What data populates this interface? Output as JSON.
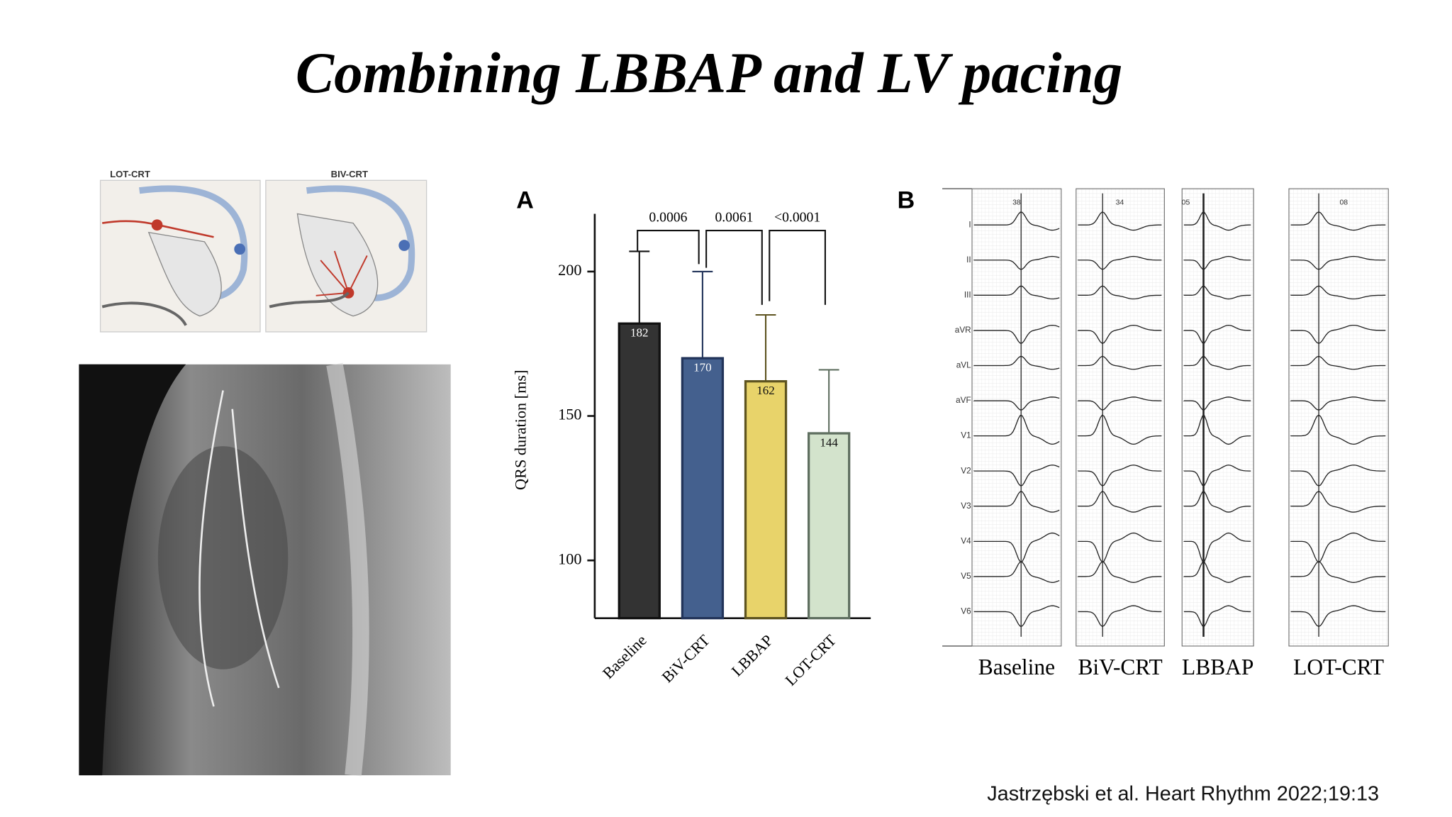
{
  "slide": {
    "title": "Combining LBBAP and LV pacing",
    "citation": "Jastrzębski et al. Heart Rhythm 2022;19:13"
  },
  "diagram": {
    "panels": [
      "LOT-CRT",
      "BIV-CRT"
    ]
  },
  "chart_data": {
    "type": "bar",
    "panel_label": "A",
    "ylabel": "QRS duration [ms]",
    "categories": [
      "Baseline",
      "BiV-CRT",
      "LBBAP",
      "LOT-CRT"
    ],
    "values": [
      182,
      170,
      162,
      144
    ],
    "errors": [
      25,
      30,
      23,
      22
    ],
    "colors": [
      "#333333",
      "#44608e",
      "#e8d36a",
      "#d3e3cc"
    ],
    "edge_colors": [
      "#111111",
      "#22345a",
      "#5e5420",
      "#5f6f60"
    ],
    "ylim": [
      80,
      220
    ],
    "yticks": [
      100,
      150,
      200
    ],
    "comparisons": [
      {
        "between": [
          "Baseline",
          "BiV-CRT"
        ],
        "label": "0.0006"
      },
      {
        "between": [
          "BiV-CRT",
          "LBBAP"
        ],
        "label": "0.0061"
      },
      {
        "between": [
          "LBBAP",
          "LOT-CRT"
        ],
        "label": "<0.0001"
      }
    ]
  },
  "ecg_panel": {
    "panel_label": "B",
    "leads": [
      "I",
      "II",
      "III",
      "aVR",
      "aVL",
      "aVF",
      "V1",
      "V2",
      "V3",
      "V4",
      "V5",
      "V6"
    ],
    "columns": [
      {
        "label": "Baseline",
        "number": "38"
      },
      {
        "label": "BiV-CRT",
        "number": "34"
      },
      {
        "label": "LBBAP",
        "number": "05"
      },
      {
        "label": "LOT-CRT",
        "number": "08"
      }
    ]
  }
}
